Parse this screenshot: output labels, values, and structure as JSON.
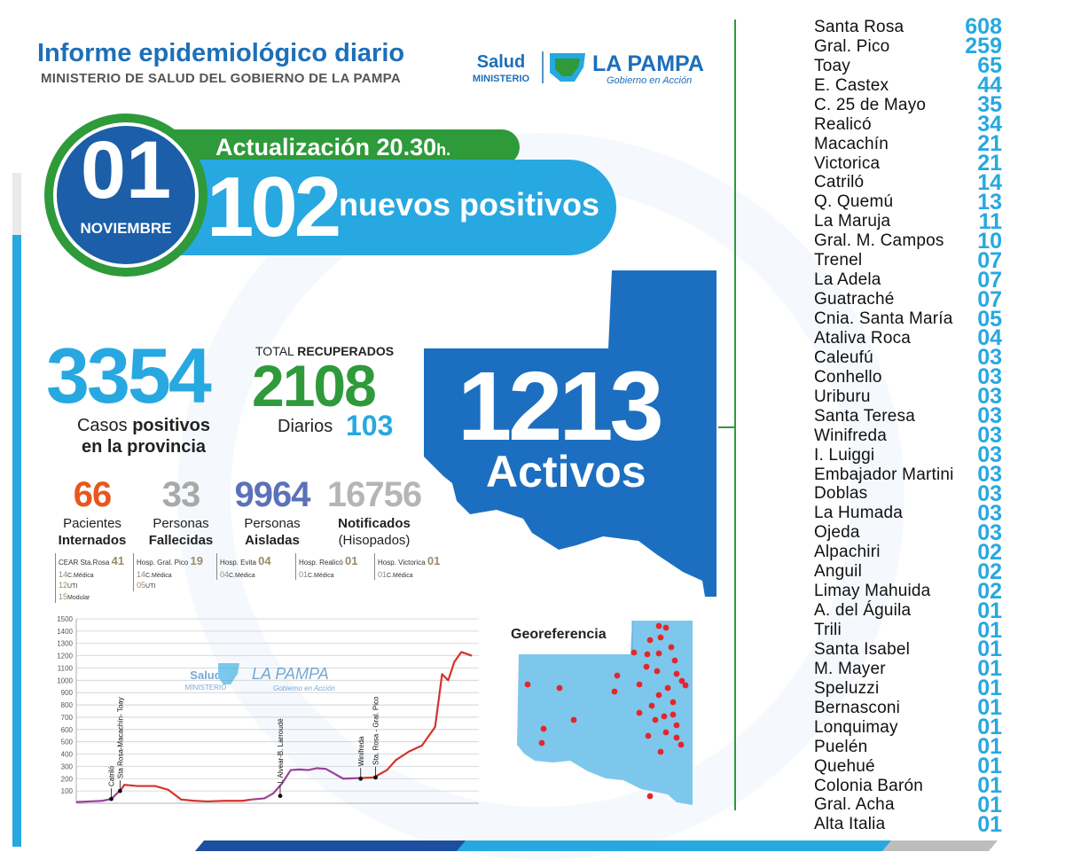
{
  "header": {
    "title": "Informe epidemiológico diario",
    "subtitle": "MINISTERIO DE SALUD DEL GOBIERNO DE LA PAMPA",
    "logo_salud": "Salud",
    "logo_ministerio": "MINISTERIO",
    "logo_province": "LA PAMPA",
    "logo_slogan": "Gobierno en Acción"
  },
  "update": {
    "label": "Actualización 20.30",
    "suffix": "h."
  },
  "date": {
    "day": "01",
    "month": "NOVIEMBRE"
  },
  "new_cases": {
    "value": "102",
    "label": "nuevos positivos"
  },
  "totals": {
    "positive_value": "3354",
    "positive_label_a": "Casos ",
    "positive_label_b": "positivos",
    "positive_label_c": "en la provincia",
    "recovered_title_a": "TOTAL ",
    "recovered_title_b": "RECUPERADOS",
    "recovered_value": "2108",
    "daily_label": "Diarios",
    "daily_value": "103"
  },
  "active": {
    "value": "1213",
    "label": "Activos"
  },
  "stats": [
    {
      "value": "66",
      "line1": "Pacientes",
      "line2": "Internados",
      "color": "#e8561e"
    },
    {
      "value": "33",
      "line1": "Personas",
      "line2": "Fallecidas",
      "color": "#a9a9a9"
    },
    {
      "value": "9964",
      "line1": "Personas",
      "line2": "Aisladas",
      "color": "#5b72b8"
    },
    {
      "value": "16756",
      "line1": "Notificados",
      "line2": "(Hisopados)",
      "color": "#b5b5b5"
    }
  ],
  "hospitals": [
    {
      "name": "CEAR Sta.Rosa",
      "total": "41",
      "lines": [
        [
          "14",
          "C.Médica"
        ],
        [
          "12",
          "UTI"
        ],
        [
          "15",
          "Modular"
        ]
      ]
    },
    {
      "name": "Hosp. Gral. Pico",
      "total": "19",
      "lines": [
        [
          "14",
          "C.Médica"
        ],
        [
          "05",
          "UTI"
        ]
      ]
    },
    {
      "name": "Hosp. Evita",
      "total": "04",
      "lines": [
        [
          "04",
          "C.Médica"
        ]
      ]
    },
    {
      "name": "Hosp. Realicó",
      "total": "01",
      "lines": [
        [
          "01",
          "C.Médica"
        ]
      ]
    },
    {
      "name": "Hosp. Victorica",
      "total": "01",
      "lines": [
        [
          "01",
          "C.Médica"
        ]
      ]
    }
  ],
  "chart_data": {
    "type": "line",
    "title": "",
    "xlabel": "",
    "ylabel": "",
    "ylim": [
      0,
      1500
    ],
    "y_ticks": [
      100,
      200,
      300,
      400,
      500,
      600,
      700,
      800,
      900,
      1000,
      1100,
      1200,
      1300,
      1400,
      1500
    ],
    "grid": true,
    "colors": {
      "purple": "#9b3f9b",
      "red": "#d6322b"
    },
    "series": [
      {
        "color_key": "purple",
        "values": [
          [
            0,
            10
          ],
          [
            15,
            15
          ],
          [
            30,
            20
          ],
          [
            40,
            35
          ]
        ]
      },
      {
        "color_key": "purple",
        "values": [
          [
            40,
            35
          ],
          [
            48,
            90
          ],
          [
            50,
            100
          ]
        ]
      },
      {
        "color_key": "red",
        "values": [
          [
            50,
            100
          ],
          [
            55,
            150
          ],
          [
            70,
            140
          ],
          [
            90,
            140
          ],
          [
            105,
            110
          ],
          [
            120,
            30
          ],
          [
            135,
            20
          ],
          [
            150,
            15
          ],
          [
            170,
            20
          ],
          [
            190,
            20
          ],
          [
            200,
            30
          ]
        ]
      },
      {
        "color_key": "purple",
        "values": [
          [
            200,
            30
          ],
          [
            215,
            40
          ],
          [
            225,
            80
          ],
          [
            235,
            160
          ],
          [
            245,
            270
          ],
          [
            255,
            275
          ],
          [
            265,
            270
          ],
          [
            275,
            285
          ],
          [
            285,
            280
          ],
          [
            295,
            240
          ],
          [
            305,
            200
          ],
          [
            325,
            205
          ]
        ]
      },
      {
        "color_key": "red",
        "values": [
          [
            325,
            205
          ],
          [
            340,
            210
          ],
          [
            355,
            270
          ],
          [
            365,
            350
          ],
          [
            380,
            420
          ],
          [
            395,
            470
          ],
          [
            410,
            620
          ],
          [
            418,
            1050
          ],
          [
            425,
            1000
          ],
          [
            432,
            1150
          ],
          [
            440,
            1230
          ],
          [
            452,
            1200
          ]
        ]
      }
    ],
    "markers": [
      {
        "x": 40,
        "y": 35,
        "label": "Catriló"
      },
      {
        "x": 50,
        "y": 100,
        "label": "Sta Rosa-Macachín- Toay"
      },
      {
        "x": 233,
        "y": 60,
        "label": "I. Alvear-B. Larroudé"
      },
      {
        "x": 325,
        "y": 200,
        "label": "Winifreda"
      },
      {
        "x": 342,
        "y": 210,
        "label": "Sta. Rosa - Gral. Pico"
      }
    ],
    "xlim": [
      0,
      460
    ]
  },
  "georef": {
    "label": "Georeferencia",
    "dots": [
      [
        160,
        6
      ],
      [
        150,
        22
      ],
      [
        162,
        19
      ],
      [
        168,
        8
      ],
      [
        174,
        30
      ],
      [
        132,
        36
      ],
      [
        147,
        38
      ],
      [
        160,
        37
      ],
      [
        178,
        45
      ],
      [
        146,
        52
      ],
      [
        158,
        57
      ],
      [
        180,
        60
      ],
      [
        138,
        72
      ],
      [
        113,
        62
      ],
      [
        186,
        68
      ],
      [
        170,
        76
      ],
      [
        160,
        84
      ],
      [
        176,
        92
      ],
      [
        190,
        73
      ],
      [
        152,
        96
      ],
      [
        138,
        104
      ],
      [
        166,
        108
      ],
      [
        176,
        106
      ],
      [
        156,
        112
      ],
      [
        180,
        118
      ],
      [
        168,
        126
      ],
      [
        148,
        130
      ],
      [
        110,
        80
      ],
      [
        48,
        76
      ],
      [
        12,
        72
      ],
      [
        30,
        122
      ],
      [
        64,
        112
      ],
      [
        28,
        138
      ],
      [
        162,
        148
      ],
      [
        150,
        198
      ],
      [
        180,
        132
      ],
      [
        185,
        140
      ]
    ]
  },
  "locations": [
    {
      "name": "Santa Rosa",
      "count": "608"
    },
    {
      "name": "Gral. Pico",
      "count": "259"
    },
    {
      "name": "Toay",
      "count": "65"
    },
    {
      "name": "E. Castex",
      "count": "44"
    },
    {
      "name": "C. 25 de Mayo",
      "count": "35"
    },
    {
      "name": "Realicó",
      "count": "34"
    },
    {
      "name": "Macachín",
      "count": "21"
    },
    {
      "name": "Victorica",
      "count": "21"
    },
    {
      "name": "Catriló",
      "count": "14"
    },
    {
      "name": "Q. Quemú",
      "count": "13"
    },
    {
      "name": "La Maruja",
      "count": "11"
    },
    {
      "name": "Gral. M. Campos",
      "count": "10"
    },
    {
      "name": "Trenel",
      "count": "07"
    },
    {
      "name": "La Adela",
      "count": "07"
    },
    {
      "name": "Guatraché",
      "count": "07"
    },
    {
      "name": "Cnia. Santa María",
      "count": "05"
    },
    {
      "name": "Ataliva Roca",
      "count": "04"
    },
    {
      "name": "Caleufú",
      "count": "03"
    },
    {
      "name": "Conhello",
      "count": "03"
    },
    {
      "name": "Uriburu",
      "count": "03"
    },
    {
      "name": "Santa Teresa",
      "count": "03"
    },
    {
      "name": "Winifreda",
      "count": "03"
    },
    {
      "name": "I. Luiggi",
      "count": "03"
    },
    {
      "name": "Embajador Martini",
      "count": "03"
    },
    {
      "name": "Doblas",
      "count": "03"
    },
    {
      "name": "La Humada",
      "count": "03"
    },
    {
      "name": "Ojeda",
      "count": "03"
    },
    {
      "name": "Alpachiri",
      "count": "02"
    },
    {
      "name": "Anguil",
      "count": "02"
    },
    {
      "name": "Limay Mahuida",
      "count": "02"
    },
    {
      "name": "A. del Águila",
      "count": "01"
    },
    {
      "name": "Trili",
      "count": "01"
    },
    {
      "name": "Santa Isabel",
      "count": "01"
    },
    {
      "name": "M. Mayer",
      "count": "01"
    },
    {
      "name": "Speluzzi",
      "count": "01"
    },
    {
      "name": "Bernasconi",
      "count": "01"
    },
    {
      "name": "Lonquimay",
      "count": "01"
    },
    {
      "name": "Puelén",
      "count": "01"
    },
    {
      "name": "Quehué",
      "count": "01"
    },
    {
      "name": "Colonia Barón",
      "count": "01"
    },
    {
      "name": "Gral. Acha",
      "count": "01"
    },
    {
      "name": "Alta Italia",
      "count": "01"
    }
  ]
}
